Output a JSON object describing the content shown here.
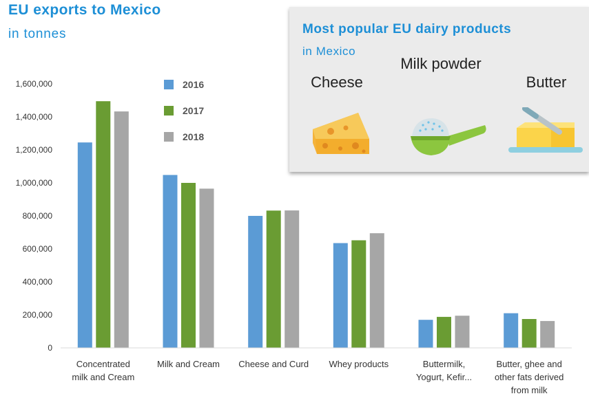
{
  "header": {
    "title": "EU exports to Mexico",
    "subtitle": "in tonnes"
  },
  "panel": {
    "title": "Most popular EU dairy products",
    "subtitle": "in Mexico",
    "products": [
      {
        "label": "Cheese",
        "icon": "cheese-icon"
      },
      {
        "label": "Milk powder",
        "icon": "milk-powder-scoop-icon"
      },
      {
        "label": "Butter",
        "icon": "butter-dish-icon"
      }
    ]
  },
  "colors": {
    "title": "#1d8fd6",
    "s2016": "#5b9bd5",
    "s2017": "#6a9c33",
    "s2018": "#a6a6a6",
    "panel_bg": "#ebebeb"
  },
  "chart_data": {
    "type": "bar",
    "title": "EU exports to Mexico",
    "subtitle": "in tonnes",
    "categories": [
      [
        "Concentrated",
        "milk and Cream"
      ],
      [
        "Milk and Cream"
      ],
      [
        "Cheese and Curd"
      ],
      [
        "Whey products"
      ],
      [
        "Buttermilk,",
        "Yogurt, Kefir..."
      ],
      [
        "Butter, ghee and",
        "other fats derived",
        "from milk"
      ]
    ],
    "series": [
      {
        "name": "2016",
        "color": "#5b9bd5",
        "values": [
          1245000,
          1048000,
          800000,
          635000,
          170000,
          210000
        ]
      },
      {
        "name": "2017",
        "color": "#6a9c33",
        "values": [
          1495000,
          1000000,
          832000,
          652000,
          188000,
          175000
        ]
      },
      {
        "name": "2018",
        "color": "#a6a6a6",
        "values": [
          1433000,
          965000,
          833000,
          695000,
          195000,
          163000
        ]
      }
    ],
    "ylim": [
      0,
      1600000
    ],
    "yticks": [
      "0",
      "200,000",
      "400,000",
      "600,000",
      "800,000",
      "1,000,000",
      "1,200,000",
      "1,400,000",
      "1,600,000"
    ],
    "legend": "top-left inside plot",
    "grid": false
  }
}
